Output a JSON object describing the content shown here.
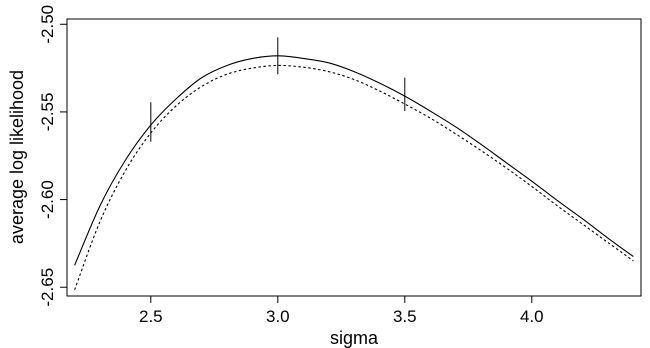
{
  "chart_data": {
    "type": "line",
    "xlabel": "sigma",
    "ylabel": "average log likelihood",
    "xlim": [
      2.17,
      4.43
    ],
    "ylim": [
      -2.655,
      -2.497
    ],
    "x_ticks": [
      2.5,
      3.0,
      3.5,
      4.0
    ],
    "x_tick_labels": [
      "2.5",
      "3.0",
      "3.5",
      "4.0"
    ],
    "y_ticks": [
      -2.5,
      -2.55,
      -2.6,
      -2.65
    ],
    "y_tick_labels": [
      "-2.50",
      "-2.55",
      "-2.60",
      "-2.65"
    ],
    "grid": false,
    "legend": "none",
    "series": [
      {
        "style": "solid",
        "color": "#000000",
        "x": [
          2.2,
          2.3,
          2.4,
          2.5,
          2.6,
          2.7,
          2.8,
          2.9,
          3.0,
          3.1,
          3.2,
          3.3,
          3.4,
          3.5,
          3.6,
          3.7,
          3.8,
          3.9,
          4.0,
          4.1,
          4.2,
          4.3,
          4.4
        ],
        "y": [
          -2.6375,
          -2.6035,
          -2.5775,
          -2.5575,
          -2.5425,
          -2.5305,
          -2.5235,
          -2.5195,
          -2.518,
          -2.5195,
          -2.522,
          -2.527,
          -2.5335,
          -2.541,
          -2.5495,
          -2.5585,
          -2.5685,
          -2.579,
          -2.5895,
          -2.6005,
          -2.611,
          -2.622,
          -2.6325
        ]
      },
      {
        "style": "dotted",
        "color": "#000000",
        "x": [
          2.2,
          2.3,
          2.4,
          2.5,
          2.6,
          2.7,
          2.8,
          2.9,
          3.0,
          3.1,
          3.2,
          3.3,
          3.4,
          3.5,
          3.6,
          3.7,
          3.8,
          3.9,
          4.0,
          4.1,
          4.2,
          4.3,
          4.4
        ],
        "y": [
          -2.6515,
          -2.6125,
          -2.5835,
          -2.562,
          -2.5465,
          -2.5355,
          -2.5285,
          -2.525,
          -2.5235,
          -2.5245,
          -2.527,
          -2.5315,
          -2.538,
          -2.5455,
          -2.5535,
          -2.5625,
          -2.572,
          -2.582,
          -2.5925,
          -2.6035,
          -2.614,
          -2.6245,
          -2.635
        ]
      }
    ],
    "error_bars": [
      {
        "x": 2.5,
        "low": -2.567,
        "high": -2.5445
      },
      {
        "x": 3.0,
        "low": -2.5285,
        "high": -2.5075
      },
      {
        "x": 3.5,
        "low": -2.5495,
        "high": -2.5305
      }
    ]
  }
}
